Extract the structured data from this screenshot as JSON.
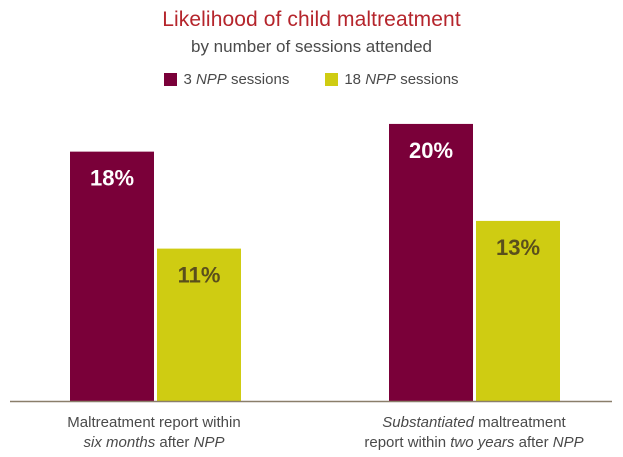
{
  "chart_data": {
    "type": "bar",
    "title": "Likelihood of child maltreatment",
    "subtitle": "by number of sessions attended",
    "legend_position": "top-center",
    "grid": false,
    "ylim": [
      0,
      20.5
    ],
    "categories": [
      {
        "parts": [
          {
            "text": "Maltreatment report within",
            "italic": false,
            "br": true
          },
          {
            "text": "six months",
            "italic": true
          },
          {
            "text": " after ",
            "italic": false
          },
          {
            "text": "NPP",
            "italic": true
          }
        ]
      },
      {
        "parts": [
          {
            "text": "Substantiated",
            "italic": true
          },
          {
            "text": " maltreatment",
            "italic": false,
            "br": true
          },
          {
            "text": "report within ",
            "italic": false
          },
          {
            "text": "two years",
            "italic": true
          },
          {
            "text": " after ",
            "italic": false
          },
          {
            "text": "NPP",
            "italic": true
          }
        ]
      }
    ],
    "series": [
      {
        "name_parts": [
          {
            "text": "3 ",
            "italic": false
          },
          {
            "text": "NPP",
            "italic": true
          },
          {
            "text": " sessions",
            "italic": false
          }
        ],
        "color": "#7a0039",
        "label_color": "#ffffff",
        "values": [
          18,
          20
        ],
        "labels": [
          "18%",
          "20%"
        ]
      },
      {
        "name_parts": [
          {
            "text": "18 ",
            "italic": false
          },
          {
            "text": "NPP",
            "italic": true
          },
          {
            "text": " sessions",
            "italic": false
          }
        ],
        "color": "#cfcc12",
        "label_color": "#5a4f1c",
        "values": [
          11,
          13
        ],
        "labels": [
          "11%",
          "13%"
        ]
      }
    ],
    "axis_color": "#8a7e6a"
  }
}
